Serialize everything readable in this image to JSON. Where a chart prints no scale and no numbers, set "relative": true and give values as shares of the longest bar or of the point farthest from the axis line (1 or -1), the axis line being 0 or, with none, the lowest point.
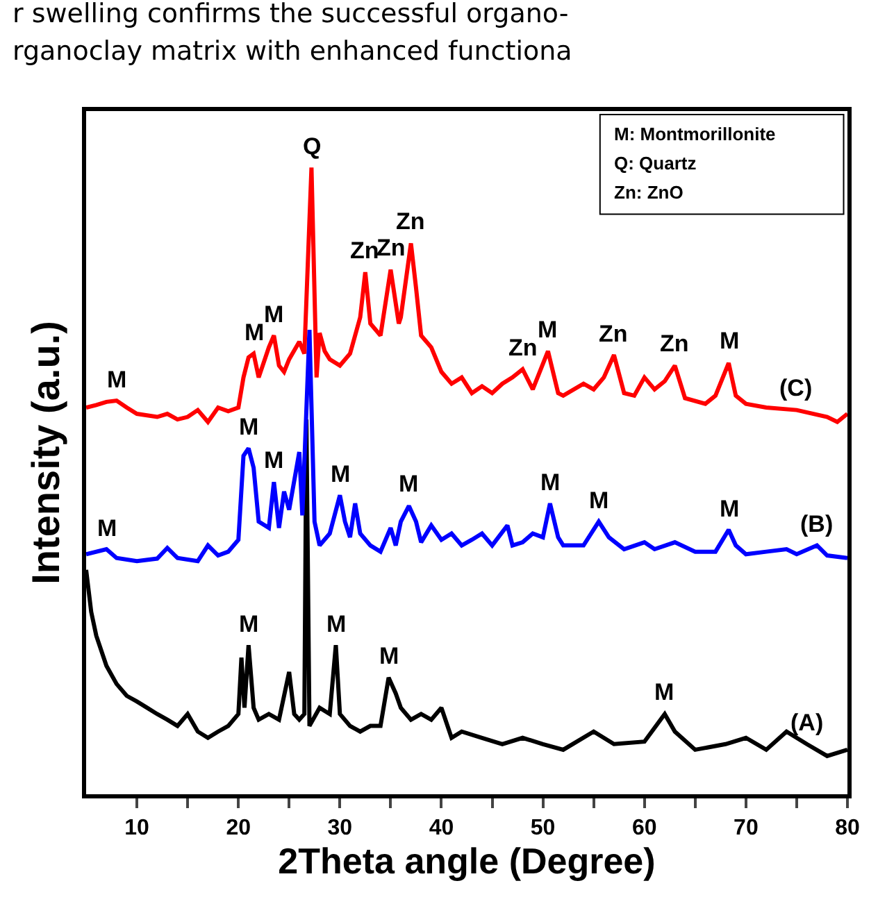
{
  "chart_data": {
    "type": "line",
    "relative": true,
    "xlabel": "2Theta angle (Degree)",
    "ylabel": "Intensity (a.u.)",
    "xlim": [
      5,
      80
    ],
    "xticks": [
      10,
      {
        "value": 15,
        "label": null
      },
      20,
      {
        "value": 25,
        "label": null
      },
      30,
      {
        "value": 35,
        "label": null
      },
      40,
      {
        "value": 45,
        "label": null
      },
      50,
      {
        "value": 55,
        "label": null
      },
      60,
      {
        "value": 65,
        "label": null
      },
      70,
      {
        "value": 75,
        "label": null
      },
      80
    ],
    "tick_labels": "x",
    "grid": false,
    "marker": "none",
    "line_style": "solid",
    "series": [
      {
        "color": "#000000",
        "x": [
          5,
          5.5,
          6,
          7,
          8,
          9,
          10,
          11,
          12,
          13,
          14,
          15,
          16,
          17,
          18,
          19,
          20,
          20.3,
          20.6,
          21,
          21.5,
          22,
          23,
          24,
          25,
          25.5,
          26,
          26.5,
          26.7,
          27,
          28,
          29,
          29.6,
          30,
          31,
          32,
          33,
          34,
          34.8,
          35.5,
          36,
          37,
          38,
          39,
          40,
          41,
          42,
          44,
          46,
          48,
          50,
          52,
          55,
          57,
          60,
          62,
          63,
          65,
          68,
          70,
          72,
          74,
          76,
          78,
          80
        ],
        "values": [
          0.358,
          0.291,
          0.253,
          0.205,
          0.176,
          0.157,
          0.148,
          0.138,
          0.128,
          0.119,
          0.109,
          0.128,
          0.1,
          0.09,
          0.1,
          0.109,
          0.128,
          0.218,
          0.138,
          0.238,
          0.138,
          0.119,
          0.128,
          0.119,
          0.195,
          0.128,
          0.119,
          0.128,
          0.598,
          0.109,
          0.138,
          0.128,
          0.238,
          0.128,
          0.109,
          0.1,
          0.109,
          0.109,
          0.186,
          0.161,
          0.138,
          0.119,
          0.128,
          0.119,
          0.138,
          0.09,
          0.1,
          0.09,
          0.08,
          0.09,
          0.08,
          0.071,
          0.1,
          0.08,
          0.084,
          0.128,
          0.1,
          0.071,
          0.08,
          0.09,
          0.071,
          0.1,
          0.08,
          0.061,
          0.071
        ]
      },
      {
        "color": "#0000ff",
        "x": [
          5,
          7,
          8,
          10,
          12,
          13,
          14,
          16,
          17,
          18,
          19,
          20,
          20.5,
          21,
          21.5,
          22,
          23,
          23.5,
          24,
          24.5,
          25,
          26,
          26.3,
          27,
          27.5,
          28,
          29,
          30,
          30.5,
          31,
          31.5,
          32,
          33,
          34,
          35,
          35.5,
          36,
          36.8,
          37.5,
          38,
          39,
          40,
          41,
          42,
          43,
          44,
          45,
          46.5,
          47,
          48,
          49,
          50,
          50.7,
          51.5,
          52,
          54,
          55.5,
          56.5,
          58,
          60,
          61,
          63,
          65,
          67,
          68.3,
          69,
          70,
          72,
          74,
          75,
          77,
          78,
          80
        ],
        "values": [
          0.383,
          0.391,
          0.377,
          0.372,
          0.376,
          0.393,
          0.377,
          0.372,
          0.397,
          0.381,
          0.387,
          0.406,
          0.54,
          0.552,
          0.521,
          0.435,
          0.425,
          0.498,
          0.425,
          0.483,
          0.454,
          0.546,
          0.445,
          0.741,
          0.435,
          0.397,
          0.416,
          0.477,
          0.435,
          0.41,
          0.464,
          0.416,
          0.397,
          0.387,
          0.425,
          0.397,
          0.435,
          0.46,
          0.435,
          0.402,
          0.429,
          0.406,
          0.416,
          0.397,
          0.406,
          0.416,
          0.397,
          0.429,
          0.397,
          0.402,
          0.416,
          0.41,
          0.464,
          0.41,
          0.397,
          0.397,
          0.435,
          0.41,
          0.391,
          0.402,
          0.391,
          0.402,
          0.387,
          0.387,
          0.422,
          0.397,
          0.383,
          0.387,
          0.391,
          0.383,
          0.397,
          0.381,
          0.377
        ]
      },
      {
        "color": "#ff0000",
        "x": [
          5,
          6,
          7,
          8,
          9,
          10,
          12,
          13,
          14,
          15,
          16,
          17,
          18,
          19,
          20,
          20.5,
          21,
          21.5,
          22,
          23,
          23.5,
          24,
          24.5,
          25,
          26,
          26.5,
          27.2,
          27.7,
          28,
          28.5,
          29,
          30,
          31,
          32,
          32.5,
          33,
          34,
          35,
          35.8,
          36,
          37,
          37.5,
          38,
          39,
          40,
          41,
          42,
          43,
          44,
          45,
          46,
          47,
          48,
          49,
          50.5,
          51.5,
          52,
          54,
          55,
          56,
          57,
          58,
          59,
          60,
          61,
          62,
          63,
          64,
          66,
          67,
          68.3,
          69,
          70,
          72,
          75,
          78,
          79,
          80
        ],
        "values": [
          0.617,
          0.621,
          0.626,
          0.628,
          0.617,
          0.607,
          0.602,
          0.607,
          0.598,
          0.602,
          0.613,
          0.594,
          0.617,
          0.611,
          0.617,
          0.665,
          0.697,
          0.703,
          0.665,
          0.713,
          0.732,
          0.684,
          0.674,
          0.694,
          0.722,
          0.703,
          1.0,
          0.665,
          0.736,
          0.707,
          0.694,
          0.684,
          0.703,
          0.761,
          0.833,
          0.751,
          0.732,
          0.837,
          0.751,
          0.761,
          0.879,
          0.808,
          0.732,
          0.713,
          0.674,
          0.655,
          0.665,
          0.64,
          0.651,
          0.64,
          0.655,
          0.665,
          0.678,
          0.646,
          0.707,
          0.64,
          0.636,
          0.655,
          0.646,
          0.665,
          0.701,
          0.64,
          0.636,
          0.665,
          0.646,
          0.659,
          0.684,
          0.632,
          0.623,
          0.636,
          0.688,
          0.636,
          0.623,
          0.617,
          0.613,
          0.602,
          0.594,
          0.607
        ]
      }
    ],
    "annotations": [
      "r swelling confirms the successful organo-",
      "rganoclay matrix with enhanced functiona",
      "M: Montmorillonite",
      "Q: Quartz",
      "Zn: ZnO",
      {
        "text": "M",
        "x": 21,
        "y": 0.238
      },
      {
        "text": "M",
        "x": 29.6,
        "y": 0.238
      },
      {
        "text": "M",
        "x": 34.8,
        "y": 0.186
      },
      {
        "text": "M",
        "x": 62,
        "y": 0.128
      },
      {
        "text": "(A)",
        "x": 76,
        "y": 0.08
      },
      {
        "text": "M",
        "x": 7,
        "y": 0.391
      },
      {
        "text": "M",
        "x": 21,
        "y": 0.552
      },
      {
        "text": "M",
        "x": 23.5,
        "y": 0.498
      },
      {
        "text": "M",
        "x": 30,
        "y": 0.477
      },
      {
        "text": "M",
        "x": 36.8,
        "y": 0.46
      },
      {
        "text": "M",
        "x": 50.7,
        "y": 0.464
      },
      {
        "text": "M",
        "x": 55.5,
        "y": 0.435
      },
      {
        "text": "M",
        "x": 68.3,
        "y": 0.422
      },
      {
        "text": "(B)",
        "x": 77,
        "y": 0.397
      },
      {
        "text": "M",
        "x": 8,
        "y": 0.628
      },
      {
        "text": "M",
        "x": 21.5,
        "y": 0.703
      },
      {
        "text": "M",
        "x": 23.5,
        "y": 0.732
      },
      {
        "text": "Q",
        "x": 27.2,
        "y": 1.0
      },
      {
        "text": "Zn",
        "x": 32.5,
        "y": 0.833
      },
      {
        "text": "Zn",
        "x": 35,
        "y": 0.837
      },
      {
        "text": "Zn",
        "x": 37,
        "y": 0.879
      },
      {
        "text": "Zn",
        "x": 48,
        "y": 0.678
      },
      {
        "text": "M",
        "x": 50.5,
        "y": 0.707
      },
      {
        "text": "Zn",
        "x": 57,
        "y": 0.701
      },
      {
        "text": "Zn",
        "x": 63,
        "y": 0.684
      },
      {
        "text": "M",
        "x": 68.3,
        "y": 0.688
      },
      {
        "text": "(C)",
        "x": 75,
        "y": 0.613
      }
    ]
  }
}
